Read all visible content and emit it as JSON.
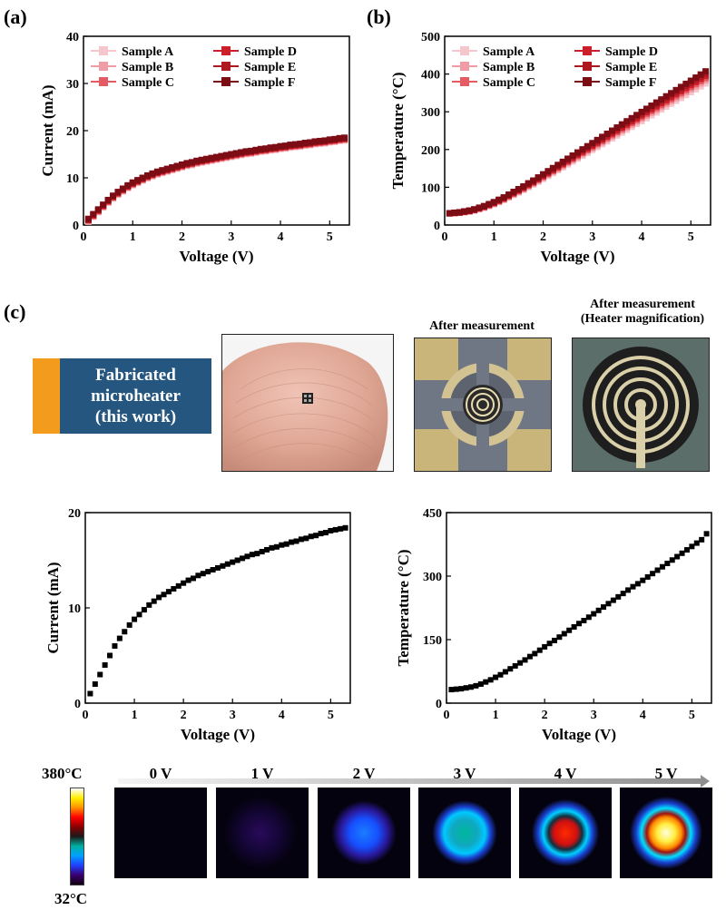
{
  "panels": {
    "a": "(a)",
    "b": "(b)",
    "c": "(c)"
  },
  "chart_data": [
    {
      "id": "a",
      "type": "scatter",
      "xlabel": "Voltage (V)",
      "ylabel": "Current (mA)",
      "xlim": [
        0,
        5.4
      ],
      "ylim": [
        0,
        40
      ],
      "xticks": [
        0,
        1,
        2,
        3,
        4,
        5
      ],
      "yticks": [
        0,
        10,
        20,
        30,
        40
      ],
      "legend_position": "top-left",
      "series": [
        {
          "name": "Sample A",
          "color": "#f7c6cc"
        },
        {
          "name": "Sample B",
          "color": "#f09ca4"
        },
        {
          "name": "Sample C",
          "color": "#e65a63"
        },
        {
          "name": "Sample D",
          "color": "#cc1f2b"
        },
        {
          "name": "Sample E",
          "color": "#b01820"
        },
        {
          "name": "Sample F",
          "color": "#7d0d15"
        }
      ],
      "x": [
        0.1,
        0.2,
        0.3,
        0.4,
        0.5,
        0.6,
        0.7,
        0.8,
        0.9,
        1.0,
        1.1,
        1.2,
        1.3,
        1.4,
        1.5,
        1.6,
        1.7,
        1.8,
        1.9,
        2.0,
        2.1,
        2.2,
        2.3,
        2.4,
        2.5,
        2.6,
        2.7,
        2.8,
        2.9,
        3.0,
        3.1,
        3.2,
        3.3,
        3.4,
        3.5,
        3.6,
        3.7,
        3.8,
        3.9,
        4.0,
        4.1,
        4.2,
        4.3,
        4.4,
        4.5,
        4.6,
        4.7,
        4.8,
        4.9,
        5.0,
        5.1,
        5.2,
        5.3
      ],
      "y": [
        1.0,
        2.0,
        3.0,
        4.0,
        5.0,
        5.9,
        6.7,
        7.4,
        8.1,
        8.7,
        9.2,
        9.7,
        10.2,
        10.6,
        11.0,
        11.3,
        11.6,
        11.9,
        12.2,
        12.5,
        12.8,
        13.0,
        13.3,
        13.5,
        13.7,
        13.9,
        14.1,
        14.3,
        14.5,
        14.7,
        14.9,
        15.1,
        15.3,
        15.4,
        15.6,
        15.8,
        15.9,
        16.1,
        16.2,
        16.4,
        16.5,
        16.7,
        16.8,
        16.9,
        17.1,
        17.2,
        17.4,
        17.5,
        17.6,
        17.8,
        17.9,
        18.1,
        18.2
      ]
    },
    {
      "id": "b",
      "type": "scatter",
      "xlabel": "Voltage (V)",
      "ylabel": "Temperature (°C)",
      "xlim": [
        0,
        5.4
      ],
      "ylim": [
        0,
        500
      ],
      "xticks": [
        0,
        1,
        2,
        3,
        4,
        5
      ],
      "yticks": [
        0,
        100,
        200,
        300,
        400,
        500
      ],
      "legend_position": "top-left",
      "series": [
        {
          "name": "Sample A",
          "color": "#f7c6cc",
          "offset": -18
        },
        {
          "name": "Sample B",
          "color": "#f09ca4",
          "offset": -10
        },
        {
          "name": "Sample C",
          "color": "#e65a63",
          "offset": -4
        },
        {
          "name": "Sample D",
          "color": "#cc1f2b",
          "offset": 2
        },
        {
          "name": "Sample E",
          "color": "#b01820",
          "offset": 8
        },
        {
          "name": "Sample F",
          "color": "#7d0d15",
          "offset": 14
        }
      ],
      "x": [
        0.1,
        0.2,
        0.3,
        0.4,
        0.5,
        0.6,
        0.7,
        0.8,
        0.9,
        1.0,
        1.1,
        1.2,
        1.3,
        1.4,
        1.5,
        1.6,
        1.7,
        1.8,
        1.9,
        2.0,
        2.1,
        2.2,
        2.3,
        2.4,
        2.5,
        2.6,
        2.7,
        2.8,
        2.9,
        3.0,
        3.1,
        3.2,
        3.3,
        3.4,
        3.5,
        3.6,
        3.7,
        3.8,
        3.9,
        4.0,
        4.1,
        4.2,
        4.3,
        4.4,
        4.5,
        4.6,
        4.7,
        4.8,
        4.9,
        5.0,
        5.1,
        5.2,
        5.3
      ],
      "y": [
        31,
        32,
        33,
        35,
        37,
        40,
        44,
        48,
        53,
        58,
        64,
        70,
        77,
        84,
        91,
        98,
        106,
        113,
        121,
        129,
        137,
        145,
        153,
        161,
        169,
        177,
        185,
        193,
        201,
        209,
        217,
        225,
        233,
        241,
        249,
        257,
        265,
        273,
        281,
        289,
        297,
        305,
        313,
        321,
        329,
        337,
        345,
        353,
        361,
        369,
        377,
        385,
        393
      ]
    },
    {
      "id": "c1",
      "type": "scatter",
      "xlabel": "Voltage (V)",
      "ylabel": "Current (mA)",
      "xlim": [
        0,
        5.4
      ],
      "ylim": [
        0,
        20
      ],
      "xticks": [
        0,
        1,
        2,
        3,
        4,
        5
      ],
      "yticks": [
        0,
        10,
        20
      ],
      "color": "#000000",
      "x": [
        0.1,
        0.2,
        0.3,
        0.4,
        0.5,
        0.6,
        0.7,
        0.8,
        0.9,
        1.0,
        1.1,
        1.2,
        1.3,
        1.4,
        1.5,
        1.6,
        1.7,
        1.8,
        1.9,
        2.0,
        2.1,
        2.2,
        2.3,
        2.4,
        2.5,
        2.6,
        2.7,
        2.8,
        2.9,
        3.0,
        3.1,
        3.2,
        3.3,
        3.4,
        3.5,
        3.6,
        3.7,
        3.8,
        3.9,
        4.0,
        4.1,
        4.2,
        4.3,
        4.4,
        4.5,
        4.6,
        4.7,
        4.8,
        4.9,
        5.0,
        5.1,
        5.2,
        5.3
      ],
      "y": [
        1.0,
        2.0,
        3.0,
        4.0,
        5.0,
        6.0,
        6.8,
        7.5,
        8.2,
        8.8,
        9.3,
        9.8,
        10.3,
        10.7,
        11.1,
        11.4,
        11.7,
        12.0,
        12.3,
        12.6,
        12.9,
        13.1,
        13.4,
        13.6,
        13.8,
        14.0,
        14.2,
        14.4,
        14.6,
        14.8,
        15.0,
        15.2,
        15.4,
        15.6,
        15.7,
        15.9,
        16.1,
        16.3,
        16.4,
        16.6,
        16.7,
        16.9,
        17.0,
        17.2,
        17.3,
        17.5,
        17.6,
        17.8,
        17.9,
        18.1,
        18.2,
        18.3,
        18.4
      ]
    },
    {
      "id": "c2",
      "type": "scatter",
      "xlabel": "Voltage (V)",
      "ylabel": "Temperature (°C)",
      "xlim": [
        0,
        5.4
      ],
      "ylim": [
        0,
        450
      ],
      "xticks": [
        0,
        1,
        2,
        3,
        4,
        5
      ],
      "yticks": [
        0,
        150,
        300,
        450
      ],
      "color": "#000000",
      "x": [
        0.1,
        0.2,
        0.3,
        0.4,
        0.5,
        0.6,
        0.7,
        0.8,
        0.9,
        1.0,
        1.1,
        1.2,
        1.3,
        1.4,
        1.5,
        1.6,
        1.7,
        1.8,
        1.9,
        2.0,
        2.1,
        2.2,
        2.3,
        2.4,
        2.5,
        2.6,
        2.7,
        2.8,
        2.9,
        3.0,
        3.1,
        3.2,
        3.3,
        3.4,
        3.5,
        3.6,
        3.7,
        3.8,
        3.9,
        4.0,
        4.1,
        4.2,
        4.3,
        4.4,
        4.5,
        4.6,
        4.7,
        4.8,
        4.9,
        5.0,
        5.1,
        5.2,
        5.3
      ],
      "y": [
        32,
        33,
        34,
        36,
        38,
        41,
        45,
        50,
        55,
        61,
        67,
        74,
        81,
        88,
        95,
        102,
        110,
        117,
        125,
        133,
        141,
        148,
        156,
        164,
        172,
        180,
        188,
        195,
        203,
        211,
        219,
        227,
        235,
        243,
        251,
        259,
        267,
        275,
        282,
        290,
        298,
        306,
        314,
        322,
        330,
        338,
        346,
        354,
        362,
        370,
        378,
        386,
        400
      ]
    }
  ],
  "fab_box": {
    "line1": "Fabricated",
    "line2": "microheater",
    "line3": "(this work)",
    "left_color": "#f29b1c",
    "right_color": "#245680"
  },
  "photos": {
    "after_title": "After measurement",
    "after_mag_title1": "After measurement",
    "after_mag_title2": "(Heater magnification)"
  },
  "thermal": {
    "scale_max": "380°C",
    "scale_min": "32°C",
    "frames": [
      {
        "label": "0 V",
        "level": 0.0
      },
      {
        "label": "1 V",
        "level": 0.12
      },
      {
        "label": "2 V",
        "level": 0.35
      },
      {
        "label": "3 V",
        "level": 0.55
      },
      {
        "label": "4 V",
        "level": 0.78
      },
      {
        "label": "5 V",
        "level": 1.0
      }
    ]
  }
}
